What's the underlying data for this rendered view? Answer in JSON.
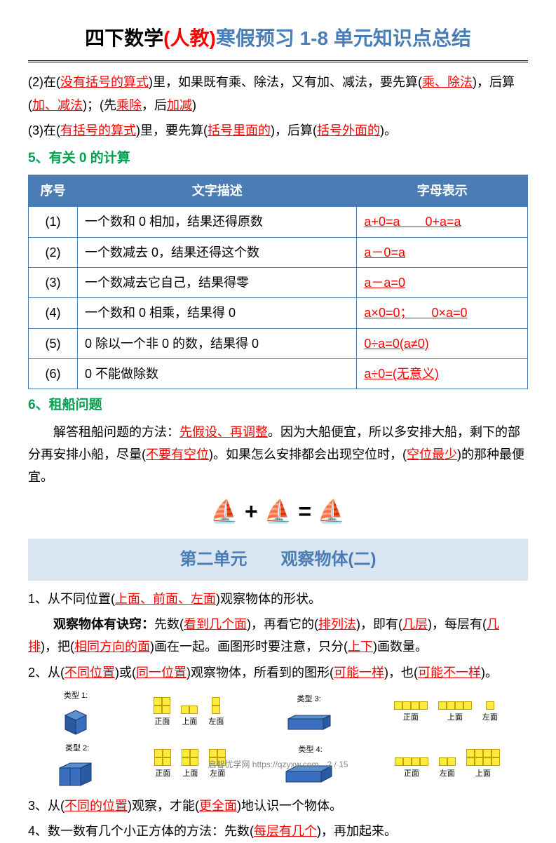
{
  "title": {
    "p1": "四下数学",
    "p2": "(人教)",
    "p3": "寒假预习 1-8 单元知识点总结"
  },
  "rule2": {
    "prefix": "(2)在(",
    "r1": "没有括号的算式",
    "mid1": ")里，如果既有乘、除法，又有加、减法，要先算(",
    "r2": "乘、除法",
    "mid2": ")，后算(",
    "r3": "加、减法",
    "mid3": ")；(先",
    "r4": "乘除",
    "mid4": "，后",
    "r5": "加减",
    "end": ")"
  },
  "rule3": {
    "prefix": "(3)在(",
    "r1": "有括号的算式",
    "mid1": ")里，要先算(",
    "r2": "括号里面的",
    "mid2": ")，后算(",
    "r3": "括号外面的",
    "end": ")。"
  },
  "section5": "5、有关 0 的计算",
  "table": {
    "headers": {
      "seq": "序号",
      "desc": "文字描述",
      "formula": "字母表示"
    },
    "rows": [
      {
        "seq": "(1)",
        "desc": "一个数和 0 相加，结果还得原数",
        "formula": "a+0=a　　0+a=a"
      },
      {
        "seq": "(2)",
        "desc": "一个数减去 0，结果还得这个数",
        "formula": "a－0=a"
      },
      {
        "seq": "(3)",
        "desc": "一个数减去它自己，结果得零",
        "formula": "a－a=0"
      },
      {
        "seq": "(4)",
        "desc": "一个数和 0 相乘，结果得 0",
        "formula": "a×0=0；　　0×a=0"
      },
      {
        "seq": "(5)",
        "desc": "0 除以一个非 0 的数，结果得 0",
        "formula": "0÷a=0(a≠0)"
      },
      {
        "seq": "(6)",
        "desc": "0 不能做除数",
        "formula": "a÷0=(无意义)"
      }
    ]
  },
  "section6": "6、租船问题",
  "boat": {
    "p1": "　　解答租船问题的方法：",
    "r1": "先假设、再调整",
    "p2": "。因为大船便宜，所以多安排大船，剩下的部分再安排小船，尽量(",
    "r2": "不要有空位",
    "p3": ")。如果怎么安排都会出现空位时，(",
    "r3": "空位最少",
    "p4": ")的那种最便宜。"
  },
  "unit2": "第二单元　　观察物体(二)",
  "obs1": {
    "p1": "1、从不同位置(",
    "r1": "上面、前面、左面",
    "p2": ")观察物体的形状。"
  },
  "trick": {
    "t": "　　观察物体有诀窍：",
    "p1": "先数(",
    "r1": "看到几个面",
    "p2": ")，再看它的(",
    "r2": "排列法",
    "p3": ")，即有(",
    "r3": "几层",
    "p4": ")，每层有(",
    "r4": "几排",
    "p5": ")，把(",
    "r5": "相同方向的面",
    "p6": ")画在一起。画图形时要注意，只分(",
    "r6": "上下",
    "p7": ")画数量。"
  },
  "obs2": {
    "p1": "2、从(",
    "r1": "不同位置",
    "p2": ")或(",
    "r2": "同一位置",
    "p3": ")观察物体，所看到的图形(",
    "r3": "可能一样",
    "p4": ")，也(",
    "r4": "可能不一样",
    "p5": ")。"
  },
  "obs3": {
    "p1": "3、从(",
    "r1": "不同的位置",
    "p2": ")观察，才能(",
    "r2": "更全面",
    "p3": ")地认识一个物体。"
  },
  "obs4": {
    "p1": "4、数一数有几个小正方体的方法：先数(",
    "r1": "每层有几个",
    "p2": ")，再加起来。"
  },
  "diagrams": {
    "type1": "类型 1:",
    "type2": "类型 2:",
    "type3": "类型 3:",
    "type4": "类型 4:",
    "front": "正面",
    "top": "上面",
    "left": "左面"
  },
  "ships": {
    "s1": "⛵",
    "plus": "+",
    "s2": "⛵",
    "eq": "=",
    "s3": "⛵"
  },
  "footer": "启智优学网 https://qzyxw.com",
  "page": "2 / 15"
}
